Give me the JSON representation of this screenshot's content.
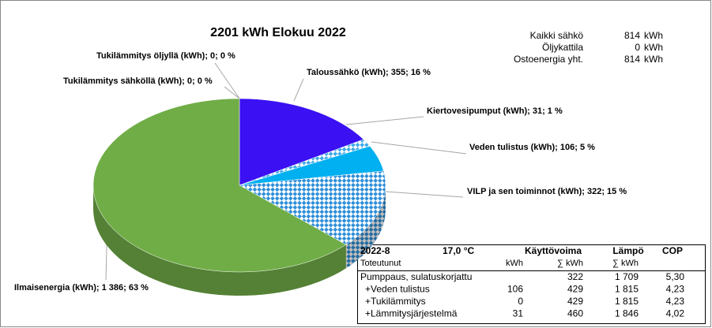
{
  "chart_data": {
    "type": "pie",
    "title": "2201  kWh Elokuu 2022",
    "values": [
      355,
      31,
      106,
      322,
      1386,
      0,
      0
    ],
    "value_labels": [
      "Taloussähkö (kWh); 355; 16 %",
      "Kiertovesipumput (kWh); 31; 1 %",
      "Veden tulistus (kWh); 106; 5 %",
      "VILP ja sen toiminnot (kWh); 322; 15 %",
      "Ilmaisenergia (kWh); 1 386; 63 %",
      "Tukilämmitys öljyllä (kWh); 0; 0 %",
      "Tukilämmitys sähköllä (kWh); 0; 0 %"
    ],
    "colors": [
      "#3b10f2",
      "#3fa9e8",
      "#00b0f0",
      "#2f8fd8",
      "#70ad47",
      "#a5a5a5",
      "#ffc000"
    ],
    "patterns": [
      false,
      true,
      false,
      true,
      false,
      false,
      false
    ]
  },
  "summary": [
    {
      "label": "Kaikki sähkö",
      "value": 814,
      "unit": "kWh"
    },
    {
      "label": "Öljykattila",
      "value": 0,
      "unit": "kWh"
    },
    {
      "label": "Ostoenergia yht.",
      "value": 814,
      "unit": "kWh"
    }
  ],
  "table": {
    "header": [
      [
        "2022-8",
        "17,0 °C",
        "Käyttövoima",
        "Lämpö",
        "COP"
      ],
      [
        "Toteutunut",
        "kWh",
        "∑ kWh",
        "∑ kWh"
      ]
    ],
    "rows": [
      [
        "Pumppaus, sulatuskorjattu",
        null,
        "322",
        "1 709",
        "5,30"
      ],
      [
        "+Veden tulistus",
        "106",
        "429",
        "1 815",
        "4,23"
      ],
      [
        "+Tukilämmitys",
        "0",
        "429",
        "1 815",
        "4,23"
      ],
      [
        "+Lämmitysjärjestelmä",
        "31",
        "460",
        "1 846",
        "4,02"
      ]
    ]
  }
}
